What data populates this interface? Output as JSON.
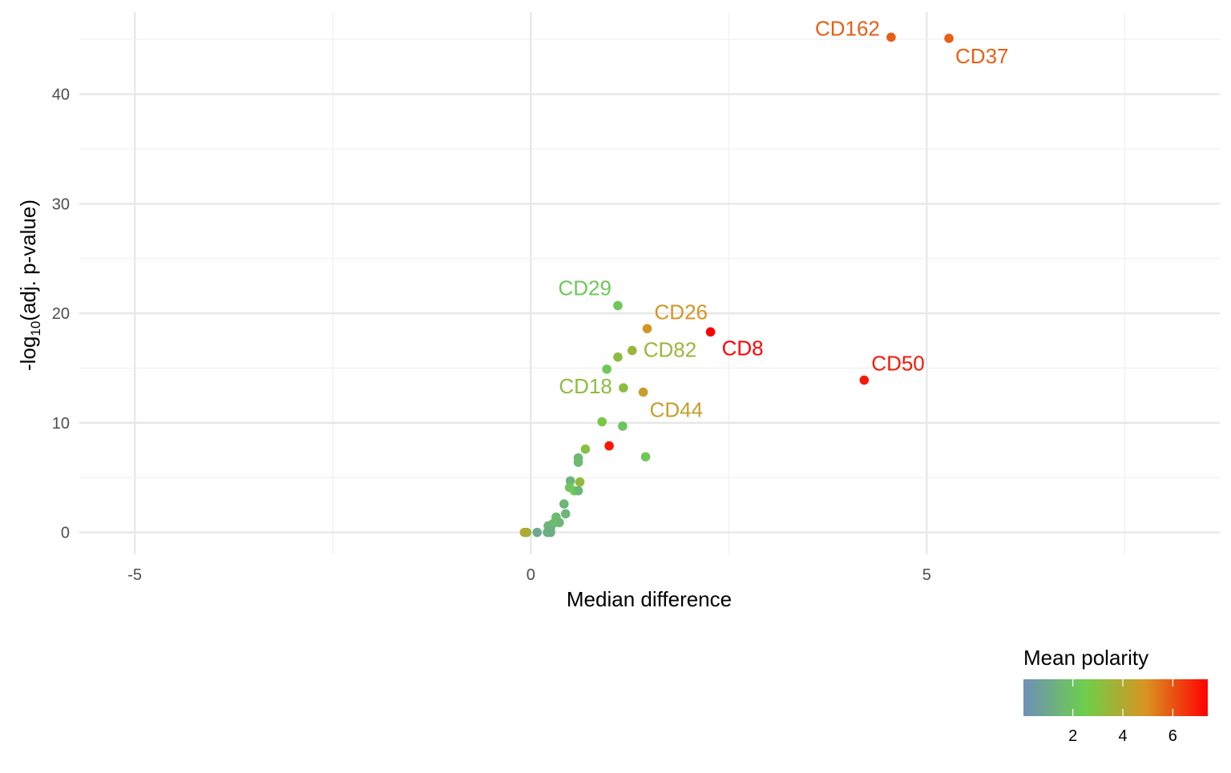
{
  "chart_data": {
    "type": "scatter",
    "xlabel": "Median difference",
    "ylabel": {
      "prefix": "-log",
      "subscript": "10",
      "rest": "(adj. p-value)"
    },
    "xlim": [
      -5.7,
      8.7
    ],
    "ylim": [
      -2,
      47.5
    ],
    "x_ticks": [
      -5,
      0,
      5
    ],
    "x_tick_labels": [
      "-5",
      "0",
      "5"
    ],
    "y_ticks": [
      0,
      10,
      20,
      30,
      40
    ],
    "y_tick_labels": [
      "0",
      "10",
      "20",
      "30",
      "40"
    ],
    "grid": true,
    "legend": {
      "title": "Mean polarity",
      "placement": "bottom-right",
      "range": [
        0.02,
        7.4
      ],
      "ticks": [
        2,
        4,
        6
      ],
      "tick_labels": [
        "2",
        "4",
        "6"
      ],
      "colors": [
        "#6E8FB9",
        "#6DCF4B",
        "#D99321",
        "#FF0000"
      ]
    },
    "points": [
      {
        "x": 4.55,
        "y": 45.2,
        "polarity": 5.8,
        "label": "CD162"
      },
      {
        "x": 5.28,
        "y": 45.1,
        "polarity": 5.8,
        "label": "CD37"
      },
      {
        "x": 1.1,
        "y": 20.7,
        "polarity": 2.2,
        "label": "CD29"
      },
      {
        "x": 1.47,
        "y": 18.6,
        "polarity": 4.8,
        "label": "CD26"
      },
      {
        "x": 2.27,
        "y": 18.3,
        "polarity": 7.4,
        "label": "CD8"
      },
      {
        "x": 1.28,
        "y": 16.6,
        "polarity": 3.5,
        "label": "CD82"
      },
      {
        "x": 1.1,
        "y": 16.0,
        "polarity": 3.2
      },
      {
        "x": 0.96,
        "y": 14.9,
        "polarity": 2.2
      },
      {
        "x": 4.21,
        "y": 13.9,
        "polarity": 7.0,
        "label": "CD50"
      },
      {
        "x": 1.17,
        "y": 13.2,
        "polarity": 3.2,
        "label": "CD18"
      },
      {
        "x": 1.42,
        "y": 12.8,
        "polarity": 4.5,
        "label": "CD44"
      },
      {
        "x": 0.9,
        "y": 10.1,
        "polarity": 2.8
      },
      {
        "x": 1.16,
        "y": 9.7,
        "polarity": 2.0
      },
      {
        "x": 0.99,
        "y": 7.9,
        "polarity": 7.0
      },
      {
        "x": 0.69,
        "y": 7.6,
        "polarity": 3.0
      },
      {
        "x": 1.45,
        "y": 6.9,
        "polarity": 2.2
      },
      {
        "x": 0.6,
        "y": 6.8,
        "polarity": 1.6
      },
      {
        "x": 0.6,
        "y": 6.4,
        "polarity": 1.7
      },
      {
        "x": 0.5,
        "y": 4.7,
        "polarity": 1.4
      },
      {
        "x": 0.62,
        "y": 4.6,
        "polarity": 3.3
      },
      {
        "x": 0.49,
        "y": 4.1,
        "polarity": 2.1
      },
      {
        "x": 0.55,
        "y": 3.8,
        "polarity": 2.4
      },
      {
        "x": 0.6,
        "y": 3.8,
        "polarity": 1.5
      },
      {
        "x": 0.42,
        "y": 2.6,
        "polarity": 1.5
      },
      {
        "x": 0.32,
        "y": 1.4,
        "polarity": 1.7
      },
      {
        "x": 0.44,
        "y": 1.7,
        "polarity": 1.5
      },
      {
        "x": 0.36,
        "y": 0.9,
        "polarity": 1.5
      },
      {
        "x": 0.28,
        "y": 0.8,
        "polarity": 1.8
      },
      {
        "x": 0.22,
        "y": 0.6,
        "polarity": 1.5
      },
      {
        "x": 0.25,
        "y": 0.3,
        "polarity": 1.4
      },
      {
        "x": 0.21,
        "y": 0.0,
        "polarity": 1.3
      },
      {
        "x": 0.25,
        "y": 0.0,
        "polarity": 1.2
      },
      {
        "x": 0.08,
        "y": 0.0,
        "polarity": 1.0
      },
      {
        "x": -0.05,
        "y": 0.0,
        "polarity": 3.6
      },
      {
        "x": -0.08,
        "y": 0.0,
        "polarity": 4.0
      }
    ]
  }
}
